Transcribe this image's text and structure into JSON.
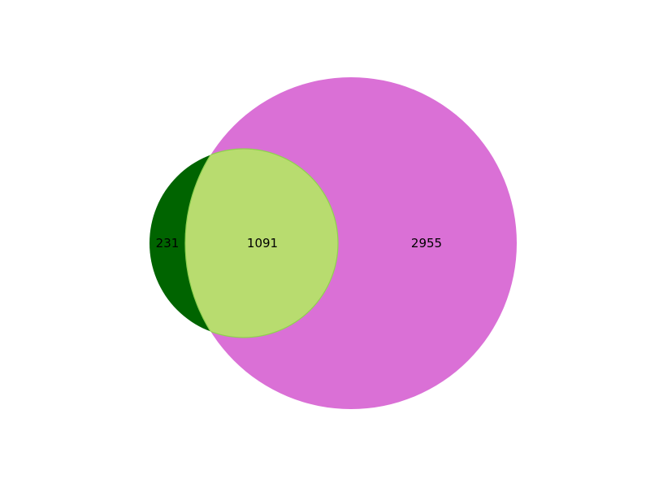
{
  "diagram": {
    "type": "venn2",
    "sets": [
      {
        "id": "A",
        "color": "#006400"
      },
      {
        "id": "B",
        "color": "#da70d6"
      }
    ],
    "intersection_color": "#b8dc6f",
    "intersection_outline": "#8fd14f",
    "regions": {
      "only_A": "231",
      "A_and_B": "1091",
      "only_B": "2955"
    }
  }
}
